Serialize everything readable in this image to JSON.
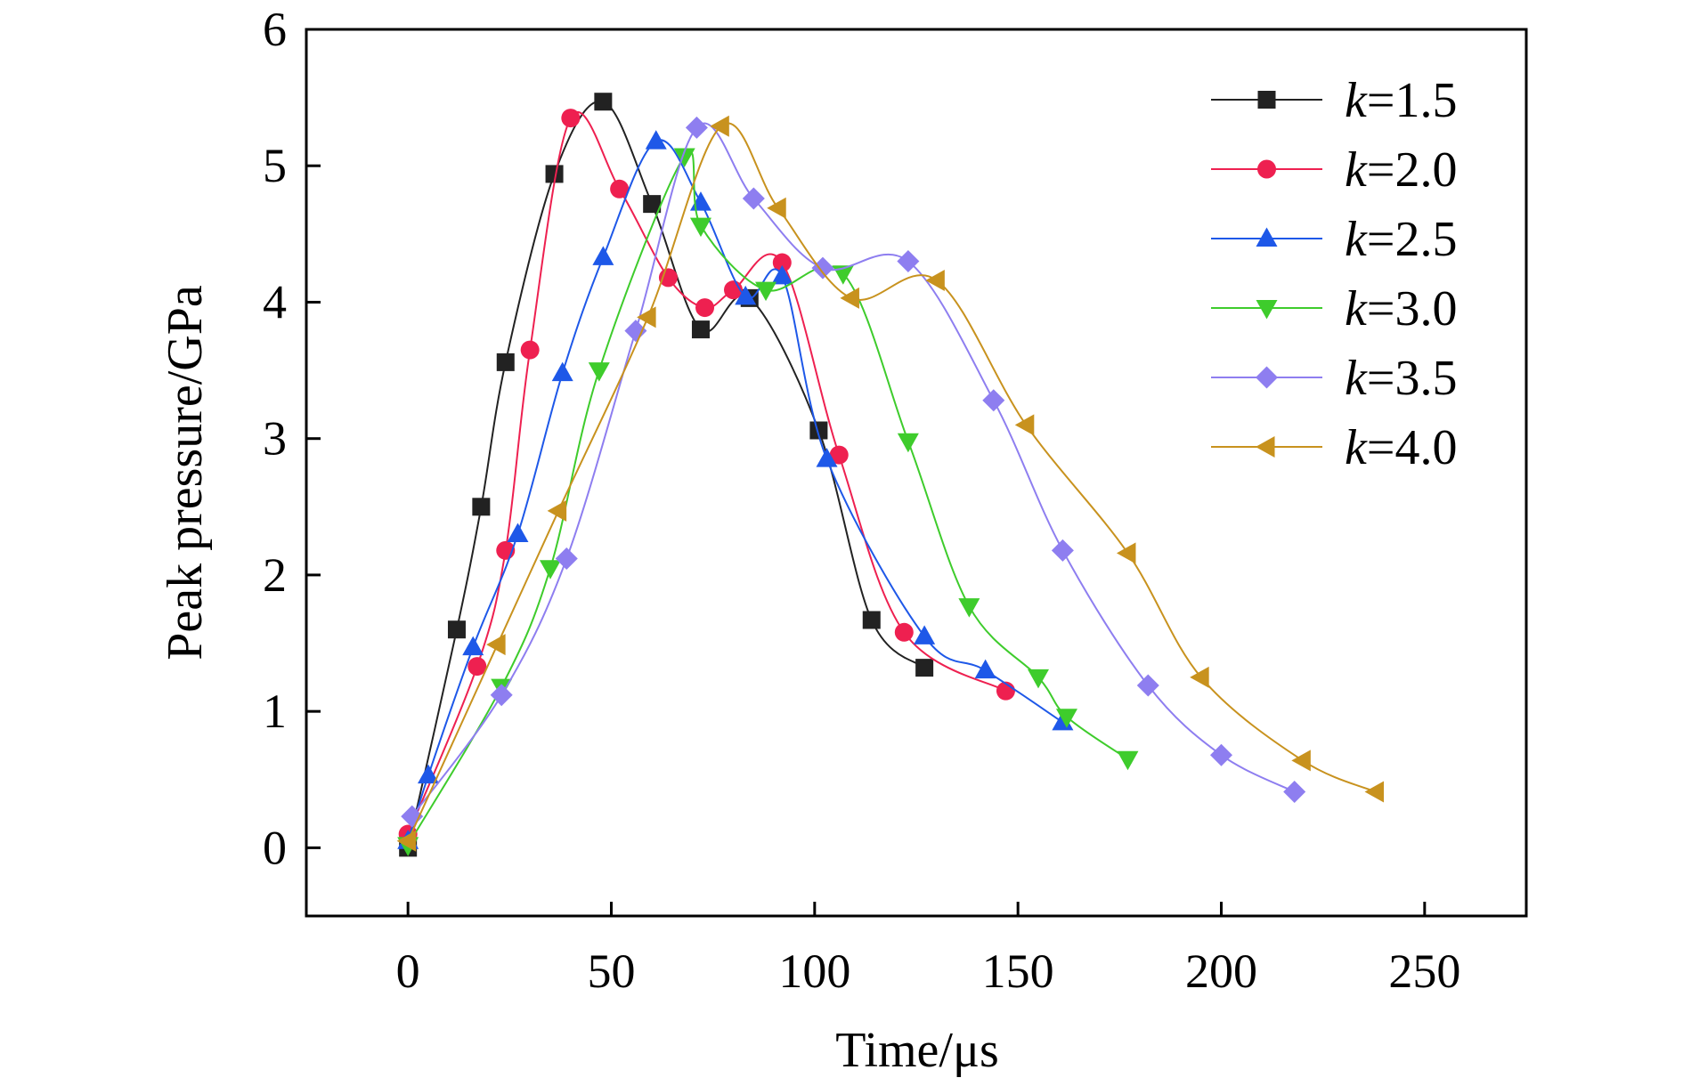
{
  "chart_data": {
    "type": "line",
    "xlabel": "Time/μs",
    "ylabel": "Peak pressure/GPa",
    "xlim": [
      -25,
      275
    ],
    "ylim": [
      -0.5,
      6
    ],
    "xticks": [
      0,
      50,
      100,
      150,
      200,
      250
    ],
    "yticks": [
      0,
      1,
      2,
      3,
      4,
      5,
      6
    ],
    "grid": false,
    "legend_position": "top-right",
    "series": [
      {
        "name_prefix": "k",
        "name_suffix": "=1.5",
        "color": "#222222",
        "marker": "square",
        "x": [
          0,
          12,
          18,
          24,
          36,
          48,
          60,
          72,
          84,
          101,
          114,
          127
        ],
        "y": [
          0,
          1.6,
          2.5,
          3.56,
          4.94,
          5.47,
          4.72,
          3.8,
          4.03,
          3.06,
          1.67,
          1.32
        ]
      },
      {
        "name_prefix": "k",
        "name_suffix": "=2.0",
        "color": "#ee2050",
        "marker": "circle",
        "x": [
          0,
          17,
          24,
          30,
          40,
          52,
          64,
          73,
          80,
          92,
          106,
          122,
          147
        ],
        "y": [
          0.1,
          1.33,
          2.18,
          3.65,
          5.35,
          4.83,
          4.18,
          3.96,
          4.09,
          4.29,
          2.88,
          1.58,
          1.15
        ]
      },
      {
        "name_prefix": "k",
        "name_suffix": "=2.5",
        "color": "#1e58e8",
        "marker": "triangle-up",
        "x": [
          0,
          5,
          16,
          27,
          38,
          48,
          61,
          72,
          83,
          92,
          103,
          127,
          142,
          161
        ],
        "y": [
          0.05,
          0.53,
          1.47,
          2.3,
          3.48,
          4.33,
          5.18,
          4.73,
          4.04,
          4.19,
          2.85,
          1.55,
          1.3,
          0.92
        ]
      },
      {
        "name_prefix": "k",
        "name_suffix": "=3.0",
        "color": "#3ecc2c",
        "marker": "triangle-down",
        "x": [
          0,
          23,
          35,
          47,
          68,
          72,
          88,
          107,
          123,
          138,
          155,
          162,
          177
        ],
        "y": [
          0.02,
          1.18,
          2.05,
          3.5,
          5.07,
          4.56,
          4.09,
          4.21,
          2.98,
          1.77,
          1.25,
          0.96,
          0.65
        ]
      },
      {
        "name_prefix": "k",
        "name_suffix": "=3.5",
        "color": "#8e7ef0",
        "marker": "diamond",
        "x": [
          1,
          23,
          39,
          56,
          71,
          85,
          102,
          123,
          144,
          161,
          182,
          200,
          218
        ],
        "y": [
          0.23,
          1.12,
          2.12,
          3.79,
          5.28,
          4.76,
          4.25,
          4.3,
          3.28,
          2.18,
          1.19,
          0.68,
          0.41
        ]
      },
      {
        "name_prefix": "k",
        "name_suffix": "=4.0",
        "color": "#c8921e",
        "marker": "triangle-left",
        "x": [
          0,
          22,
          37,
          59,
          77,
          91,
          109,
          130,
          152,
          177,
          195,
          220,
          238
        ],
        "y": [
          0.05,
          1.49,
          2.47,
          3.89,
          5.29,
          4.69,
          4.03,
          4.16,
          3.1,
          2.16,
          1.25,
          0.64,
          0.41
        ]
      }
    ]
  }
}
